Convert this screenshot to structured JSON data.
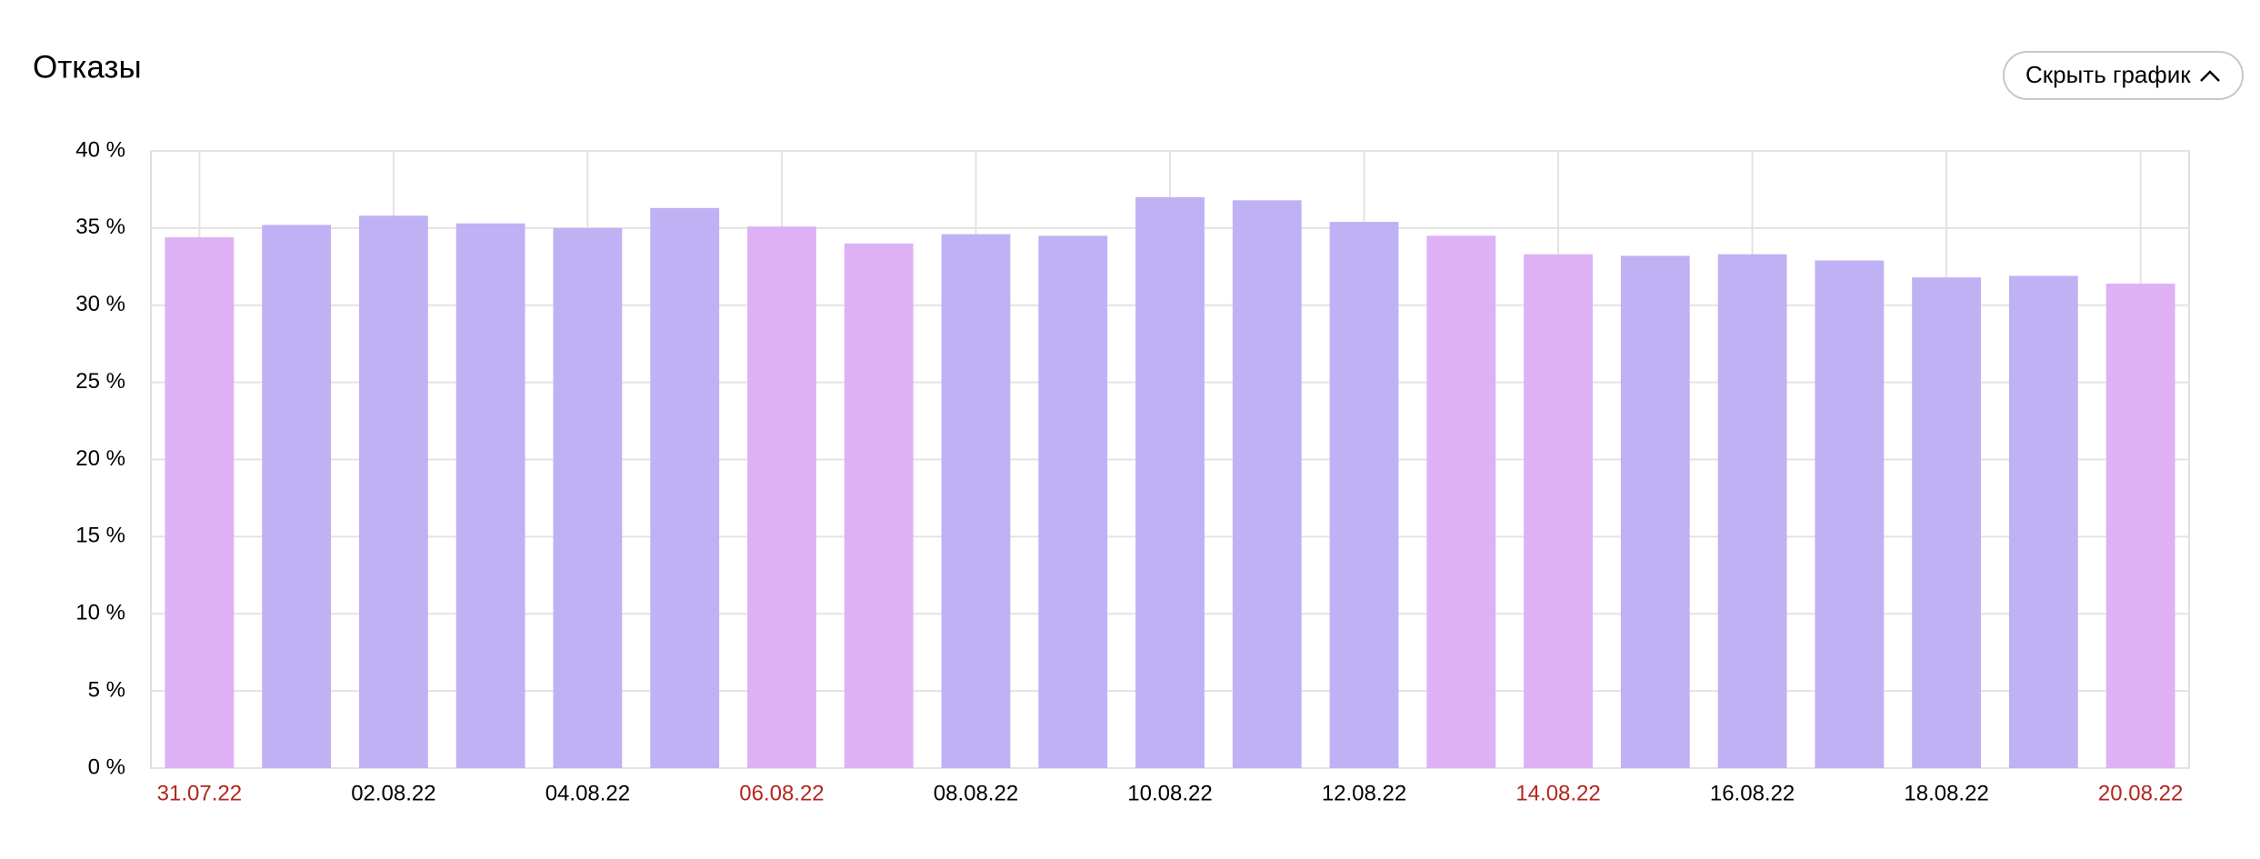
{
  "chart_data": {
    "type": "bar",
    "title": "Отказы",
    "button": "Скрыть график",
    "categories": [
      "31.07.22",
      null,
      "02.08.22",
      null,
      "04.08.22",
      null,
      "06.08.22",
      null,
      "08.08.22",
      null,
      "10.08.22",
      null,
      "12.08.22",
      null,
      "14.08.22",
      null,
      "16.08.22",
      null,
      "18.08.22",
      null,
      "20.08.22"
    ],
    "values": [
      34.4,
      35.2,
      35.8,
      35.3,
      35.0,
      36.3,
      35.1,
      34.0,
      34.6,
      34.5,
      37.0,
      36.8,
      35.4,
      34.5,
      33.3,
      33.2,
      33.3,
      32.9,
      31.8,
      31.9,
      31.4
    ],
    "bar_colors": [
      "#deb1f4",
      "#bfb1f4",
      "#bfb1f4",
      "#bfb1f4",
      "#bfb1f4",
      "#bfb1f4",
      "#deb1f4",
      "#deb1f4",
      "#bfb1f4",
      "#bfb1f4",
      "#bfb1f4",
      "#bfb1f4",
      "#bfb1f4",
      "#deb1f4",
      "#deb1f4",
      "#bfb1f4",
      "#bfb1f4",
      "#bfb1f4",
      "#bfb1f4",
      "#bfb1f4",
      "#deb1f4"
    ],
    "label_colors": [
      "#b3261e",
      "#000000",
      "#000000",
      "#000000",
      "#000000",
      "#000000",
      "#b3261e",
      "#000000",
      "#000000",
      "#000000",
      "#000000",
      "#000000",
      "#000000",
      "#000000",
      "#b3261e",
      "#000000",
      "#000000",
      "#000000",
      "#000000",
      "#000000",
      "#b3261e"
    ],
    "ylim": [
      0,
      40
    ],
    "yticks": [
      {
        "value": 0,
        "label": "0 %"
      },
      {
        "value": 5,
        "label": "5 %"
      },
      {
        "value": 10,
        "label": "10 %"
      },
      {
        "value": 15,
        "label": "15 %"
      },
      {
        "value": 20,
        "label": "20 %"
      },
      {
        "value": 25,
        "label": "25 %"
      },
      {
        "value": 30,
        "label": "30 %"
      },
      {
        "value": 35,
        "label": "35 %"
      },
      {
        "value": 40,
        "label": "40 %"
      }
    ],
    "grid": true
  }
}
